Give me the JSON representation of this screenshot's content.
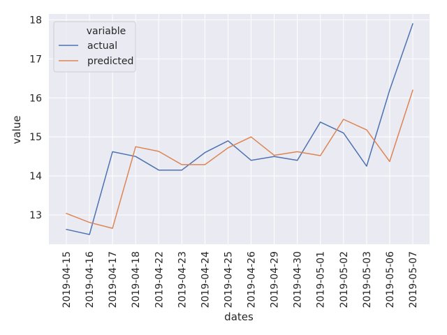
{
  "chart_data": {
    "type": "line",
    "x": [
      "2019-04-15",
      "2019-04-16",
      "2019-04-17",
      "2019-04-18",
      "2019-04-22",
      "2019-04-23",
      "2019-04-24",
      "2019-04-25",
      "2019-04-26",
      "2019-04-29",
      "2019-04-30",
      "2019-05-01",
      "2019-05-02",
      "2019-05-03",
      "2019-05-06",
      "2019-05-07"
    ],
    "series": [
      {
        "name": "actual",
        "color": "#4c72b0",
        "values": [
          12.63,
          12.5,
          14.62,
          14.5,
          14.15,
          14.15,
          14.6,
          14.9,
          14.4,
          14.5,
          14.4,
          15.38,
          15.1,
          14.25,
          16.2,
          17.9
        ]
      },
      {
        "name": "predicted",
        "color": "#dd8452",
        "values": [
          13.04,
          12.81,
          12.66,
          14.75,
          14.63,
          14.29,
          14.29,
          14.72,
          15.0,
          14.53,
          14.62,
          14.52,
          15.45,
          15.18,
          14.37,
          16.2
        ]
      }
    ],
    "xlabel": "dates",
    "ylabel": "value",
    "ylim": [
      12.25,
      18.15
    ],
    "yticks": [
      13,
      14,
      15,
      16,
      17,
      18
    ],
    "legend": {
      "title": "variable",
      "placement": "top-left"
    },
    "grid": true,
    "background": "#eaeaf2",
    "grid_color": "#ffffff"
  }
}
